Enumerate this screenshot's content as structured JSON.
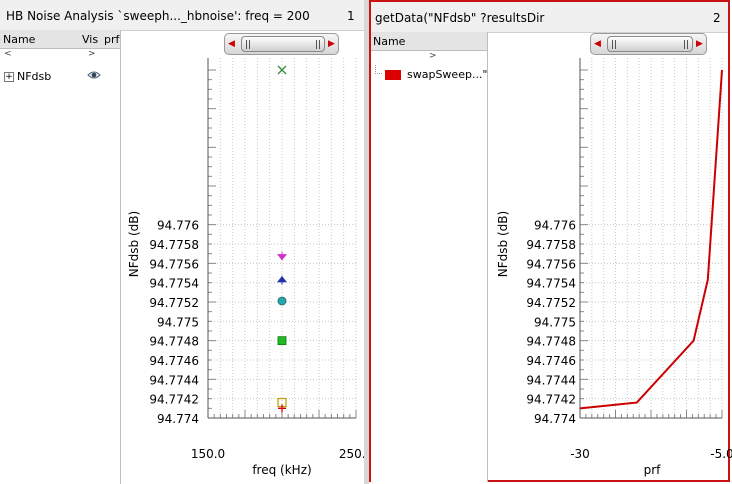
{
  "left_pane": {
    "title": "HB Noise Analysis `sweeph..._hbnoise': freq = 200",
    "number": "1",
    "tree": {
      "headers": [
        "Name",
        "Vis",
        "prf"
      ],
      "scroll_left": "<",
      "scroll_right": ">",
      "items": [
        {
          "toggle": "+",
          "label": "NFdsb",
          "visible_icon": "eye-icon"
        }
      ]
    }
  },
  "right_pane": {
    "title": "getData(\"NFdsb\" ?resultsDir",
    "number": "2",
    "tree": {
      "headers": [
        "Name"
      ],
      "scroll_right": ">",
      "items": [
        {
          "label": "swapSweep...\"",
          "color": "#dd0000"
        }
      ]
    }
  },
  "chart_data": [
    {
      "type": "scatter",
      "xlabel": "freq (kHz)",
      "ylabel": "NFdsb (dB)",
      "xlim": [
        150.0,
        250.0
      ],
      "xticks": [
        "150.0",
        "250.0"
      ],
      "ylim": [
        94.774,
        94.7776
      ],
      "yticks": [
        "94.776",
        "94.7758",
        "94.7756",
        "94.7754",
        "94.7752",
        "94.775",
        "94.7748",
        "94.7746",
        "94.7744",
        "94.7742",
        "94.774"
      ],
      "grid": true,
      "points": [
        {
          "x": 200,
          "y": 94.7776,
          "marker": "x",
          "color": "#3a8a3a"
        },
        {
          "x": 200,
          "y": 94.77567,
          "marker": "tri-down",
          "color": "#cc33cc"
        },
        {
          "x": 200,
          "y": 94.77543,
          "marker": "tri-up",
          "color": "#2233aa"
        },
        {
          "x": 200,
          "y": 94.77521,
          "marker": "circle",
          "color": "#22aaaa"
        },
        {
          "x": 200,
          "y": 94.7748,
          "marker": "square",
          "color": "#22bb22"
        },
        {
          "x": 200,
          "y": 94.77416,
          "marker": "square-open",
          "color": "#b8a000"
        },
        {
          "x": 200,
          "y": 94.7741,
          "marker": "plus",
          "color": "#dd0000"
        }
      ]
    },
    {
      "type": "line",
      "xlabel": "prf",
      "ylabel": "NFdsb (dB)",
      "xlim": [
        -30,
        -5.0
      ],
      "xticks": [
        "-30",
        "-5.0"
      ],
      "ylim": [
        94.774,
        94.7776
      ],
      "yticks": [
        "94.776",
        "94.7758",
        "94.7756",
        "94.7754",
        "94.7752",
        "94.775",
        "94.7748",
        "94.7746",
        "94.7744",
        "94.7742",
        "94.774"
      ],
      "grid": true,
      "series": [
        {
          "name": "swapSweep...\"",
          "color": "#cc0000",
          "x": [
            -30,
            -20,
            -10,
            -7.5,
            -5
          ],
          "y": [
            94.7741,
            94.77416,
            94.7748,
            94.77543,
            94.7776
          ]
        }
      ]
    }
  ]
}
